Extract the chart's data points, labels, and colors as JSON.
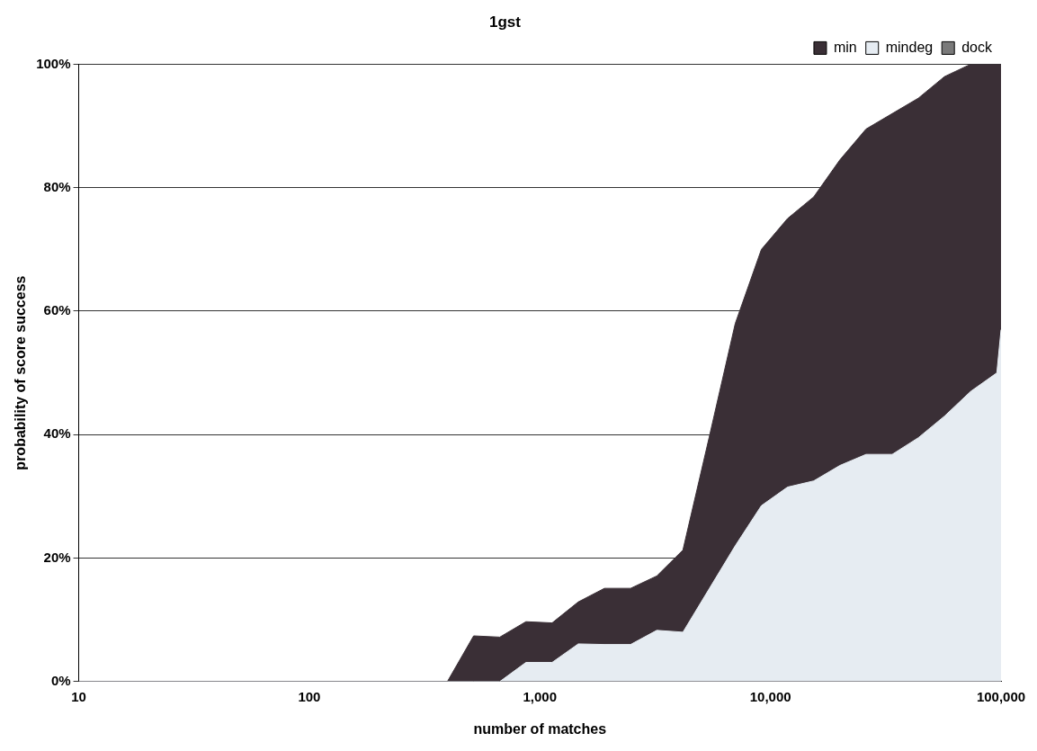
{
  "chart_data": {
    "type": "area",
    "title": "1gst",
    "xlabel": "number of matches",
    "ylabel": "probability of score success",
    "x": [
      10,
      397,
      516,
      670,
      870,
      1130,
      1467,
      1905,
      2474,
      3213,
      4172,
      5418,
      7036,
      9135,
      11860,
      15400,
      20000,
      25970,
      33730,
      43800,
      56880,
      73840,
      95900,
      100000
    ],
    "series": [
      {
        "name": "min",
        "color": "#3a2f36",
        "values": [
          0,
          0,
          7.4,
          7.2,
          9.7,
          9.5,
          12.9,
          15.1,
          15.1,
          17.1,
          21.3,
          39.5,
          58,
          70,
          75,
          78.5,
          84.5,
          89.5,
          92,
          94.5,
          98,
          100,
          100,
          100
        ]
      },
      {
        "name": "mindeg",
        "color": "#e6ecf2",
        "values": [
          0,
          0,
          0,
          0,
          3.1,
          3.1,
          6.1,
          6,
          6,
          8.3,
          8,
          15,
          22,
          28.5,
          31.5,
          32.5,
          35,
          36.8,
          36.8,
          39.5,
          43,
          47,
          50,
          57
        ]
      },
      {
        "name": "dock",
        "color": "#7a7a7a",
        "values": [
          null,
          null,
          null,
          null,
          null,
          null,
          null,
          null,
          null,
          null,
          null,
          null,
          null,
          null,
          null,
          null,
          null,
          null,
          null,
          null,
          null,
          null,
          null,
          null
        ]
      }
    ],
    "log": "x",
    "xlim": [
      10,
      100000
    ],
    "xticks": [
      10,
      100,
      {
        "value": 1000,
        "label": "1,000"
      },
      {
        "value": 10000,
        "label": "10,000"
      },
      {
        "value": 100000,
        "label": "100,000"
      }
    ],
    "ylim": [
      0,
      100
    ],
    "yticks": [
      {
        "value": 0,
        "label": "0%"
      },
      {
        "value": 20,
        "label": "20%"
      },
      {
        "value": 40,
        "label": "40%"
      },
      {
        "value": 60,
        "label": "60%"
      },
      {
        "value": 80,
        "label": "80%"
      },
      {
        "value": 100,
        "label": "100%"
      }
    ],
    "grid": "y",
    "legend": "top right"
  }
}
